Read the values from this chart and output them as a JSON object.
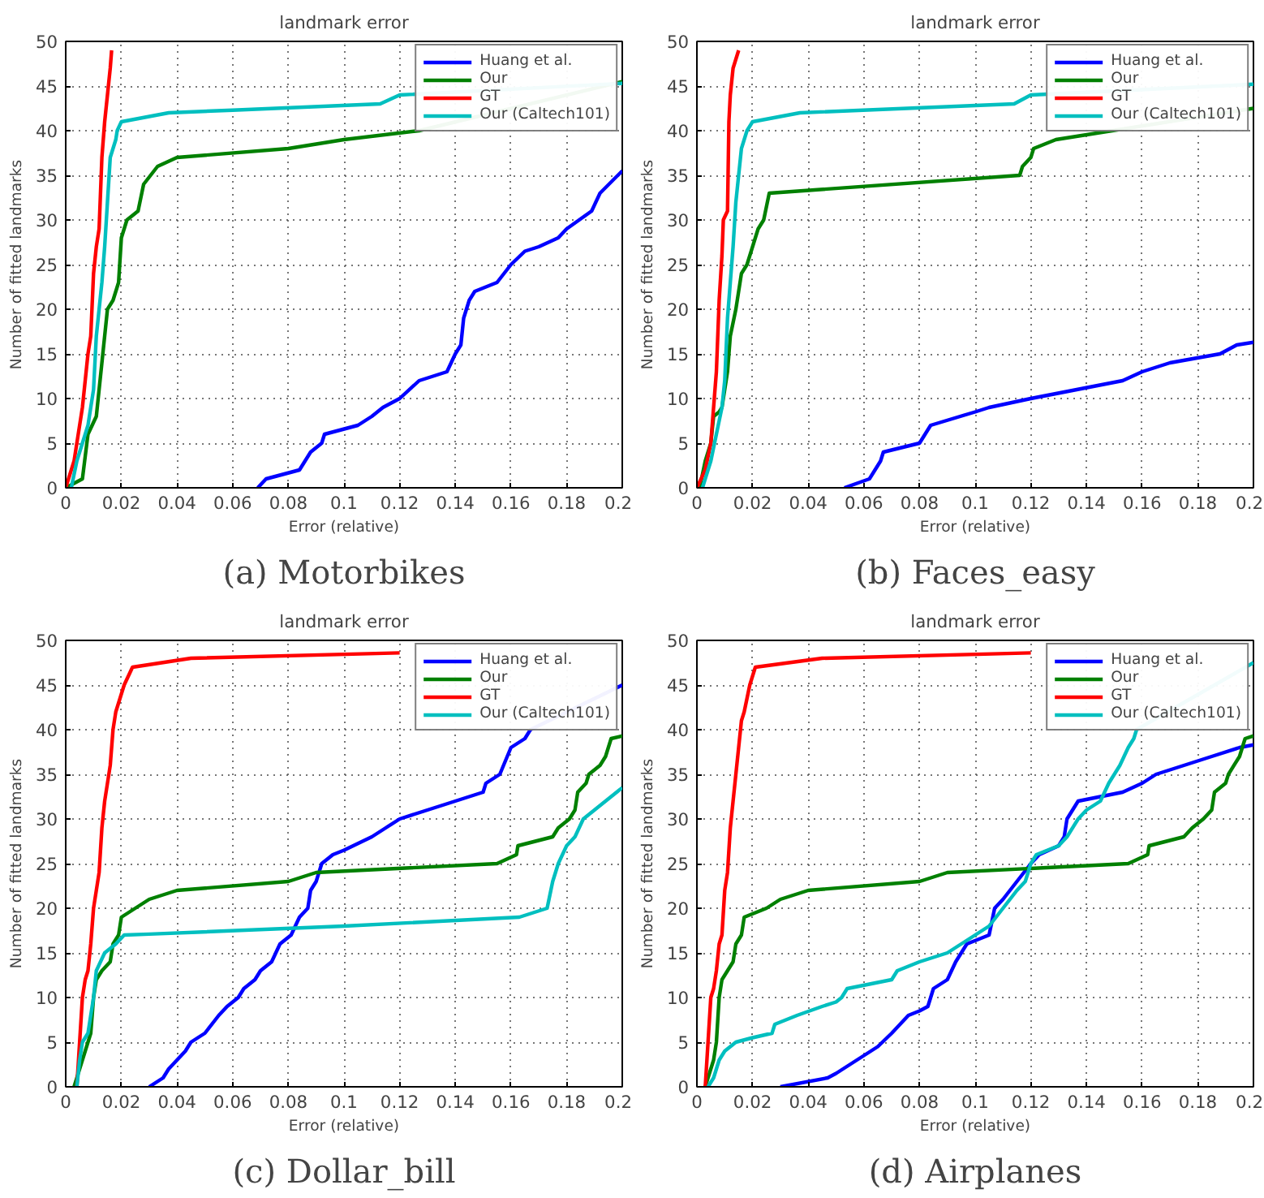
{
  "chart_data": [
    {
      "type": "line",
      "title": "landmark error",
      "xlabel": "Error (relative)",
      "ylabel": "Number of fitted landmarks",
      "annotations": [
        "(a) Motorbikes"
      ],
      "xlim": [
        0,
        0.2
      ],
      "ylim": [
        0,
        50
      ],
      "xticks": [
        0,
        0.02,
        0.04,
        0.06,
        0.08,
        0.1,
        0.12,
        0.14,
        0.16,
        0.18,
        0.2
      ],
      "yticks": [
        0,
        5,
        10,
        15,
        20,
        25,
        30,
        35,
        40,
        45,
        50
      ],
      "grid": true,
      "legend": "top right",
      "line_style": "solid",
      "marker": "none",
      "series": [
        {
          "name": "Huang et al.",
          "color": "#0000ff",
          "x": [
            0.069,
            0.072,
            0.084,
            0.088,
            0.092,
            0.093,
            0.105,
            0.11,
            0.114,
            0.12,
            0.127,
            0.137,
            0.14,
            0.142,
            0.143,
            0.145,
            0.147,
            0.155,
            0.16,
            0.165,
            0.17,
            0.177,
            0.18,
            0.189,
            0.192,
            0.2
          ],
          "values": [
            0,
            1,
            2,
            4,
            5,
            6,
            7,
            8,
            9,
            10,
            12,
            13,
            15,
            16,
            19,
            21,
            22,
            23,
            25,
            26.5,
            27,
            28,
            29,
            31,
            33,
            35.5
          ]
        },
        {
          "name": "Our",
          "color": "#008000",
          "x": [
            0,
            0.006,
            0.008,
            0.011,
            0.013,
            0.015,
            0.017,
            0.019,
            0.02,
            0.022,
            0.026,
            0.028,
            0.033,
            0.04,
            0.08,
            0.1,
            0.127,
            0.2
          ],
          "values": [
            0,
            1,
            6,
            8,
            14,
            20,
            21,
            23,
            28,
            30,
            31,
            34,
            36,
            37,
            38,
            39,
            40,
            45.5
          ]
        },
        {
          "name": "GT",
          "color": "#ff0000",
          "x": [
            0,
            0.003,
            0.006,
            0.008,
            0.009,
            0.01,
            0.011,
            0.012,
            0.013,
            0.014,
            0.016,
            0.0165
          ],
          "values": [
            0,
            3,
            9,
            15,
            17,
            24,
            27,
            29,
            37,
            41,
            47,
            49
          ]
        },
        {
          "name": "Our (Caltech101)",
          "color": "#00bfbf",
          "x": [
            0.002,
            0.004,
            0.006,
            0.008,
            0.01,
            0.011,
            0.013,
            0.014,
            0.015,
            0.016,
            0.018,
            0.0185,
            0.02,
            0.037,
            0.06,
            0.113,
            0.12,
            0.2
          ],
          "values": [
            0,
            3,
            5,
            7,
            11,
            17,
            23,
            27,
            32,
            37,
            39,
            40,
            41,
            42,
            42.3,
            43,
            44,
            45.3
          ]
        }
      ]
    },
    {
      "type": "line",
      "title": "landmark error",
      "xlabel": "Error (relative)",
      "ylabel": "Number of fitted landmarks",
      "annotations": [
        "(b) Faces_easy"
      ],
      "xlim": [
        0,
        0.2
      ],
      "ylim": [
        0,
        50
      ],
      "xticks": [
        0,
        0.02,
        0.04,
        0.06,
        0.08,
        0.1,
        0.12,
        0.14,
        0.16,
        0.18,
        0.2
      ],
      "yticks": [
        0,
        5,
        10,
        15,
        20,
        25,
        30,
        35,
        40,
        45,
        50
      ],
      "grid": true,
      "legend": "top right",
      "line_style": "solid",
      "marker": "none",
      "series": [
        {
          "name": "Huang et al.",
          "color": "#0000ff",
          "x": [
            0.053,
            0.062,
            0.066,
            0.067,
            0.08,
            0.084,
            0.1,
            0.105,
            0.12,
            0.153,
            0.16,
            0.17,
            0.188,
            0.194,
            0.2
          ],
          "values": [
            0,
            1,
            3,
            4,
            5,
            7,
            8.5,
            9,
            10,
            12,
            13,
            14,
            15,
            16,
            16.3
          ]
        },
        {
          "name": "Our",
          "color": "#008000",
          "x": [
            0.001,
            0.003,
            0.005,
            0.006,
            0.008,
            0.009,
            0.011,
            0.012,
            0.014,
            0.016,
            0.018,
            0.02,
            0.022,
            0.024,
            0.026,
            0.116,
            0.117,
            0.12,
            0.121,
            0.129,
            0.2
          ],
          "values": [
            0,
            3,
            5,
            8,
            8.5,
            9,
            13,
            17,
            20,
            24,
            25,
            27,
            29,
            30,
            33,
            35,
            36,
            37,
            38,
            39,
            42.5
          ]
        },
        {
          "name": "GT",
          "color": "#ff0000",
          "x": [
            0,
            0.003,
            0.005,
            0.007,
            0.008,
            0.009,
            0.0095,
            0.011,
            0.0115,
            0.012,
            0.013,
            0.015
          ],
          "values": [
            0,
            2,
            5,
            13,
            21,
            26,
            30,
            31,
            41,
            44,
            47,
            49
          ]
        },
        {
          "name": "Our (Caltech101)",
          "color": "#00bfbf",
          "x": [
            0.002,
            0.005,
            0.007,
            0.009,
            0.01,
            0.011,
            0.012,
            0.013,
            0.014,
            0.015,
            0.016,
            0.018,
            0.02,
            0.037,
            0.114,
            0.12,
            0.2
          ],
          "values": [
            0,
            3,
            6,
            9,
            12,
            19,
            23,
            27,
            32,
            35,
            38,
            40,
            41,
            42,
            43,
            44,
            45.2
          ]
        }
      ]
    },
    {
      "type": "line",
      "title": "landmark error",
      "xlabel": "Error (relative)",
      "ylabel": "Number of fitted landmarks",
      "annotations": [
        "(c) Dollar_bill"
      ],
      "xlim": [
        0,
        0.2
      ],
      "ylim": [
        0,
        50
      ],
      "xticks": [
        0,
        0.02,
        0.04,
        0.06,
        0.08,
        0.1,
        0.12,
        0.14,
        0.16,
        0.18,
        0.2
      ],
      "yticks": [
        0,
        5,
        10,
        15,
        20,
        25,
        30,
        35,
        40,
        45,
        50
      ],
      "grid": true,
      "legend": "top right",
      "line_style": "solid",
      "marker": "none",
      "series": [
        {
          "name": "Huang et al.",
          "color": "#0000ff",
          "x": [
            0.03,
            0.035,
            0.037,
            0.04,
            0.043,
            0.045,
            0.05,
            0.055,
            0.058,
            0.062,
            0.064,
            0.068,
            0.07,
            0.074,
            0.077,
            0.081,
            0.084,
            0.087,
            0.088,
            0.09,
            0.092,
            0.096,
            0.1,
            0.11,
            0.115,
            0.12,
            0.135,
            0.15,
            0.151,
            0.156,
            0.16,
            0.165,
            0.167,
            0.2
          ],
          "values": [
            0,
            1,
            2,
            3,
            4,
            5,
            6,
            8,
            9,
            10,
            11,
            12,
            13,
            14,
            16,
            17,
            19,
            20,
            22,
            23,
            25,
            26,
            26.5,
            28,
            29,
            30,
            31.5,
            33,
            34,
            35,
            38,
            39,
            40,
            45
          ]
        },
        {
          "name": "Our",
          "color": "#008000",
          "x": [
            0.003,
            0.006,
            0.008,
            0.009,
            0.01,
            0.011,
            0.013,
            0.016,
            0.017,
            0.019,
            0.02,
            0.025,
            0.03,
            0.04,
            0.08,
            0.09,
            0.155,
            0.162,
            0.1625,
            0.175,
            0.177,
            0.181,
            0.183,
            0.184,
            0.187,
            0.188,
            0.192,
            0.194,
            0.196,
            0.2
          ],
          "values": [
            0,
            3,
            5,
            6,
            10,
            12,
            13,
            14,
            16,
            17,
            19,
            20,
            21,
            22,
            23,
            24,
            25,
            26,
            27,
            28,
            29,
            30,
            31,
            33,
            34,
            35,
            36,
            37,
            39,
            39.3
          ]
        },
        {
          "name": "GT",
          "color": "#ff0000",
          "x": [
            0.004,
            0.005,
            0.006,
            0.007,
            0.008,
            0.009,
            0.01,
            0.011,
            0.012,
            0.013,
            0.014,
            0.016,
            0.017,
            0.018,
            0.021,
            0.024,
            0.045,
            0.12
          ],
          "values": [
            0,
            5,
            10,
            12,
            13,
            16,
            20,
            22,
            24,
            29,
            32,
            36,
            40,
            42,
            45,
            47,
            48,
            48.6
          ]
        },
        {
          "name": "Our (Caltech101)",
          "color": "#00bfbf",
          "x": [
            0.004,
            0.005,
            0.006,
            0.008,
            0.01,
            0.011,
            0.014,
            0.018,
            0.021,
            0.03,
            0.1,
            0.163,
            0.168,
            0.173,
            0.175,
            0.177,
            0.18,
            0.183,
            0.186,
            0.19,
            0.2
          ],
          "values": [
            0,
            3,
            5,
            6,
            10,
            13,
            15,
            16,
            17,
            17.1,
            18,
            19,
            19.5,
            20,
            23,
            25,
            27,
            28,
            30,
            31,
            33.5
          ]
        }
      ]
    },
    {
      "type": "line",
      "title": "landmark error",
      "xlabel": "Error (relative)",
      "ylabel": "Number of fitted landmarks",
      "annotations": [
        "(d) Airplanes"
      ],
      "xlim": [
        0,
        0.2
      ],
      "ylim": [
        0,
        50
      ],
      "xticks": [
        0,
        0.02,
        0.04,
        0.06,
        0.08,
        0.1,
        0.12,
        0.14,
        0.16,
        0.18,
        0.2
      ],
      "yticks": [
        0,
        5,
        10,
        15,
        20,
        25,
        30,
        35,
        40,
        45,
        50
      ],
      "grid": true,
      "legend": "top right",
      "line_style": "solid",
      "marker": "none",
      "series": [
        {
          "name": "Huang et al.",
          "color": "#0000ff",
          "x": [
            0.03,
            0.047,
            0.05,
            0.055,
            0.06,
            0.065,
            0.07,
            0.076,
            0.08,
            0.083,
            0.085,
            0.09,
            0.093,
            0.097,
            0.105,
            0.107,
            0.11,
            0.115,
            0.12,
            0.123,
            0.13,
            0.132,
            0.133,
            0.137,
            0.153,
            0.16,
            0.165,
            0.175,
            0.185,
            0.195,
            0.2
          ],
          "values": [
            0,
            1,
            1.5,
            2.5,
            3.5,
            4.5,
            6,
            8,
            8.5,
            9,
            11,
            12,
            14,
            16,
            17,
            20,
            21,
            23,
            25,
            26,
            27,
            28,
            30,
            32,
            33,
            34,
            35,
            36,
            37,
            38,
            38.3
          ]
        },
        {
          "name": "Our",
          "color": "#008000",
          "x": [
            0.003,
            0.006,
            0.007,
            0.008,
            0.009,
            0.011,
            0.013,
            0.014,
            0.016,
            0.017,
            0.025,
            0.03,
            0.04,
            0.08,
            0.09,
            0.155,
            0.162,
            0.1625,
            0.175,
            0.178,
            0.182,
            0.185,
            0.186,
            0.19,
            0.191,
            0.195,
            0.197,
            0.2
          ],
          "values": [
            0,
            3,
            5,
            10,
            12,
            13,
            14,
            16,
            17,
            19,
            20,
            21,
            22,
            23,
            24,
            25,
            26,
            27,
            28,
            29,
            30,
            31,
            33,
            34,
            35,
            37,
            39,
            39.3
          ]
        },
        {
          "name": "GT",
          "color": "#ff0000",
          "x": [
            0.003,
            0.004,
            0.005,
            0.006,
            0.007,
            0.008,
            0.009,
            0.01,
            0.011,
            0.012,
            0.013,
            0.014,
            0.015,
            0.016,
            0.017,
            0.019,
            0.021,
            0.045,
            0.12
          ],
          "values": [
            0,
            5,
            10,
            11,
            13,
            16,
            17,
            22,
            24,
            29,
            32,
            35,
            38,
            41,
            42,
            45,
            47,
            48,
            48.6
          ]
        },
        {
          "name": "Our (Caltech101)",
          "color": "#00bfbf",
          "x": [
            0.004,
            0.006,
            0.008,
            0.01,
            0.014,
            0.02,
            0.027,
            0.028,
            0.036,
            0.045,
            0.05,
            0.052,
            0.054,
            0.07,
            0.072,
            0.08,
            0.09,
            0.095,
            0.1,
            0.105,
            0.11,
            0.115,
            0.118,
            0.12,
            0.122,
            0.13,
            0.133,
            0.137,
            0.14,
            0.145,
            0.148,
            0.152,
            0.155,
            0.157,
            0.158,
            0.2
          ],
          "values": [
            0,
            1,
            3,
            4,
            5,
            5.5,
            6,
            7,
            8,
            9,
            9.5,
            10,
            11,
            12,
            13,
            14,
            15,
            16,
            17,
            18,
            20,
            22,
            23,
            25,
            26,
            27,
            28,
            30,
            31,
            32,
            34,
            36,
            38,
            39,
            40,
            47.5
          ]
        }
      ]
    }
  ]
}
